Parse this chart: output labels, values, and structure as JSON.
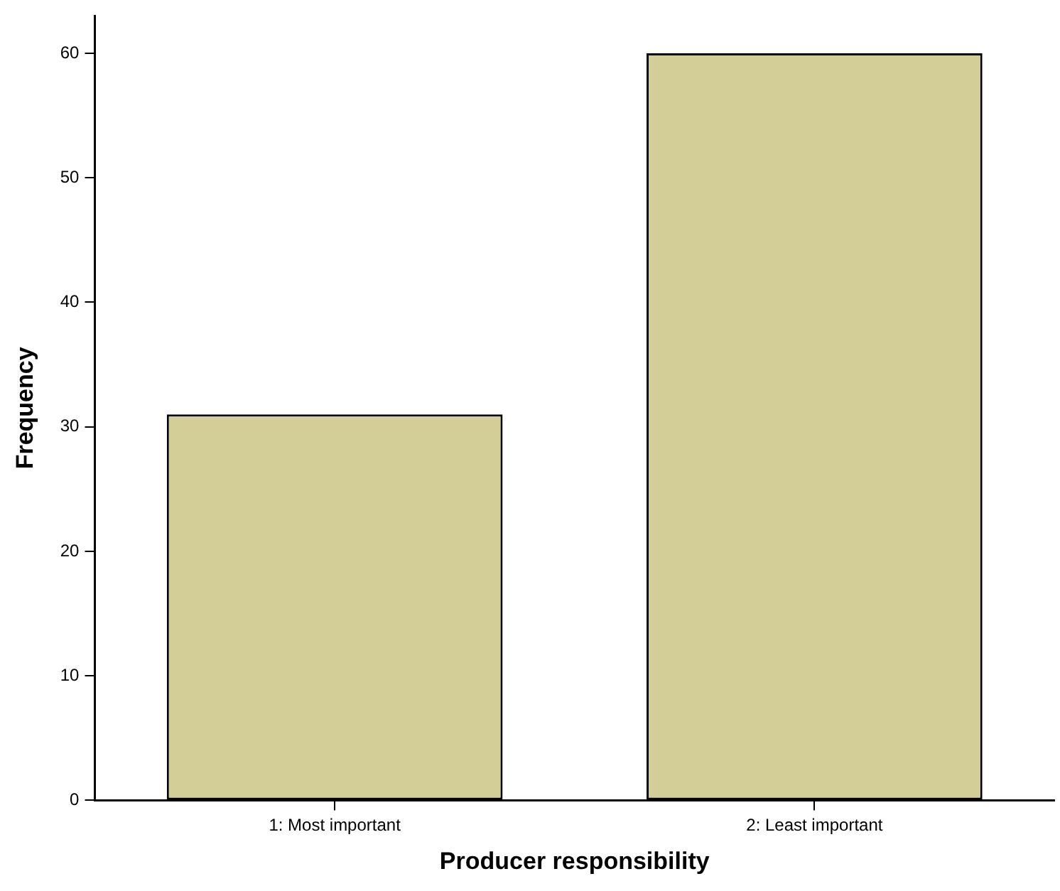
{
  "chart_data": {
    "type": "bar",
    "xlabel": "Producer responsibility",
    "ylabel": "Frequency",
    "categories": [
      "1: Most important",
      "2: Least important"
    ],
    "values": [
      31,
      60
    ],
    "color": "#d3cd98",
    "ylim": [
      0,
      63
    ],
    "yticks": [
      0,
      10,
      20,
      30,
      40,
      50,
      60
    ],
    "grid": false,
    "legend": false
  }
}
